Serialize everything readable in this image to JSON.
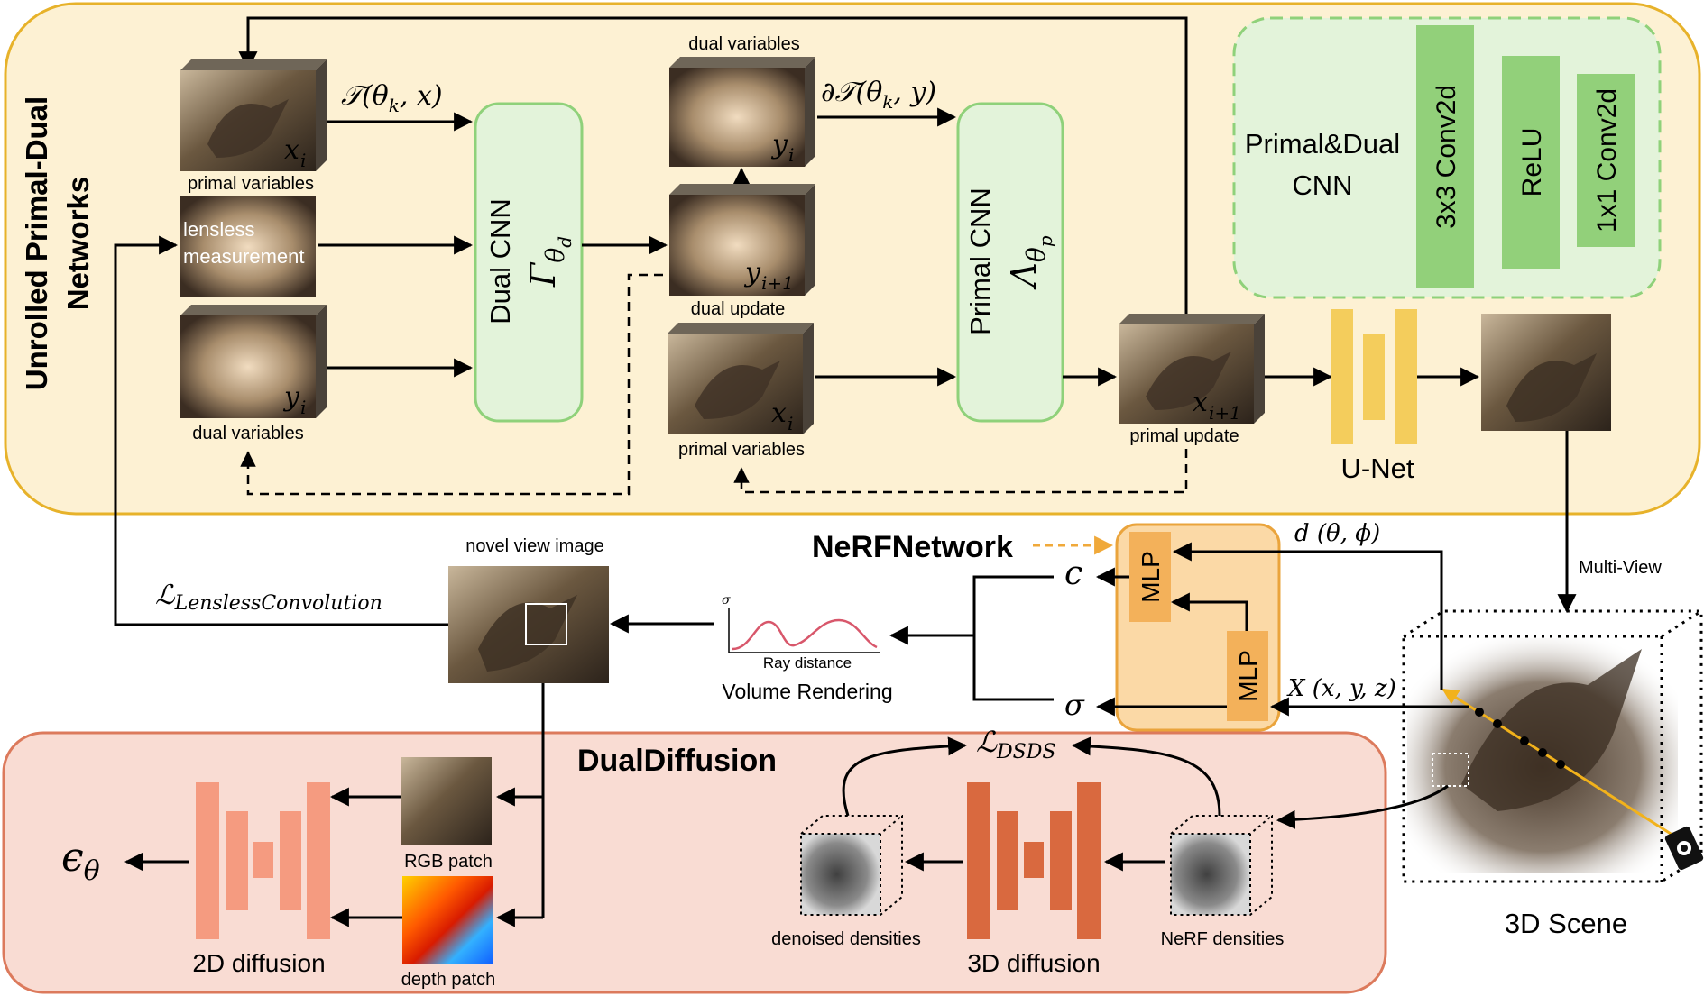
{
  "sections": {
    "unrolled_title_line1": "Unrolled Primal-Dual",
    "unrolled_title_line2": "Networks",
    "dual_diffusion_title": "DualDiffusion",
    "nerf_network_title": "NeRFNetwork"
  },
  "primal_dual": {
    "primal_variables": "primal variables",
    "lensless_measurement_line1": "lensless",
    "lensless_measurement_line2": "measurement",
    "dual_variables_bottom": "dual variables",
    "dual_variables_top": "dual variables",
    "dual_update": "dual update",
    "primal_variables_mid": "primal variables",
    "primal_update": "primal update",
    "x_i": "x",
    "x_i_sub": "i",
    "y_i": "y",
    "y_i_sub": "i",
    "y_ip1_sub": "i+1",
    "x_ip1_sub": "i+1",
    "op_T": "𝒯(θ",
    "op_T_sub": "k",
    "op_T_rest": ", x)",
    "op_dT": "∂𝒯(θ",
    "op_dT_sub": "k",
    "op_dT_rest": ", y)",
    "dual_cnn_label": "Dual CNN",
    "dual_cnn_symbol": "Γ",
    "dual_cnn_sub": "θ",
    "dual_cnn_subsub": "d",
    "primal_cnn_label": "Primal CNN",
    "primal_cnn_symbol": "Λ",
    "primal_cnn_sub": "θ",
    "primal_cnn_subsub": "p",
    "unet_label": "U-Net"
  },
  "cnn_block": {
    "title_line1": "Primal&Dual",
    "title_line2": "CNN",
    "layer1": "3x3 Conv2d",
    "layer2": "ReLU",
    "layer3": "1x1 Conv2d"
  },
  "nerf": {
    "mlp_label": "MLP",
    "c_label": "c",
    "sigma_label": "σ",
    "direction_label": "d (θ, ϕ)",
    "position_label": "X (x, y, z)",
    "multi_view": "Multi-View",
    "scene_label": "3D Scene",
    "volume_rendering": "Volume Rendering",
    "ray_distance": "Ray distance",
    "sigma_axis": "σ",
    "novel_view": "novel view image",
    "loss_lensless": "ℒ",
    "loss_lensless_sub": "LenslessConvolution"
  },
  "diffusion": {
    "epsilon": "ϵ",
    "epsilon_sub": "θ",
    "diffusion_2d": "2D diffusion",
    "rgb_patch": "RGB patch",
    "depth_patch": "depth patch",
    "loss_dsds": "ℒ",
    "loss_dsds_sub": "DSDS",
    "denoised_densities": "denoised densities",
    "diffusion_3d": "3D diffusion",
    "nerf_densities": "NeRF densities"
  },
  "colors": {
    "top_panel_fill": "#fdf1d3",
    "top_panel_stroke": "#e7b22a",
    "bottom_panel_fill": "#f9dcd3",
    "bottom_panel_stroke": "#dc7a5c",
    "cnn_green_fill": "#e3f3da",
    "cnn_green_stroke": "#8fd17a",
    "layer_green": "#92d07a",
    "unet_yellow": "#f4cd5c",
    "nerf_box_fill": "#fbd9a6",
    "nerf_box_stroke": "#eaa43c",
    "mlp_fill": "#f3b15a",
    "diff2d": "#f59b80",
    "diff3d": "#d9693f",
    "orange_arrow": "#f0a93a"
  }
}
